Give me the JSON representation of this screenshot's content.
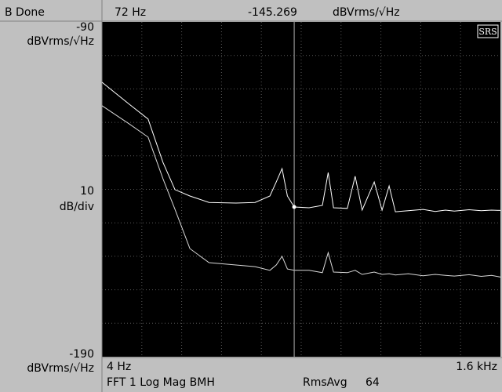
{
  "chart_data": {
    "type": "line",
    "status": "B Done",
    "logo": "SRS",
    "trace_label": "FFT 1 Log Mag BMH",
    "averaging": {
      "label": "RmsAvg",
      "count": 64
    },
    "marker": {
      "x": {
        "value": 72,
        "label": "72 Hz"
      },
      "value": -145.269
    },
    "ylabel": "dBVrms/√Hz",
    "scale_per_div": 10,
    "scale_unit": "dB/div",
    "xlog": true,
    "grid": true,
    "xlim": [
      4,
      1600
    ],
    "xticks": [
      {
        "value": 4,
        "label": "4 Hz"
      },
      {
        "value": 1600,
        "label": "1.6 kHz"
      }
    ],
    "ylim": [
      -190,
      -90
    ],
    "yticks": [
      -90,
      -190
    ],
    "x": [
      4,
      6,
      8,
      10,
      12,
      15,
      20,
      30,
      40,
      50,
      55,
      60,
      65,
      72,
      90,
      110,
      120,
      130,
      160,
      180,
      200,
      240,
      270,
      300,
      330,
      400,
      500,
      600,
      700,
      800,
      1000,
      1200,
      1400,
      1600
    ],
    "series": [
      {
        "color": "#ffffff",
        "values": [
          -108,
          -114.5,
          -119,
          -131.9,
          -140.1,
          -142,
          -143.9,
          -144.1,
          -143.9,
          -142,
          -137.8,
          -133.8,
          -142,
          -145.269,
          -145.5,
          -144.8,
          -135,
          -145.5,
          -145.7,
          -136.1,
          -146.2,
          -137.8,
          -146.2,
          -139,
          -146.7,
          -146.4,
          -146,
          -146.6,
          -146.2,
          -146.5,
          -146.1,
          -146.4,
          -146.2,
          -146.3
        ]
      },
      {
        "color": "#d8d8d8",
        "values": [
          -115,
          -120.4,
          -124.4,
          -136.8,
          -146,
          -157.7,
          -161.9,
          -162.6,
          -163.1,
          -164.2,
          -162.6,
          -160,
          -163.8,
          -164.2,
          -164.2,
          -164.9,
          -158.9,
          -164.7,
          -164.9,
          -164.2,
          -165.4,
          -164.7,
          -165.4,
          -165.2,
          -165.6,
          -165.2,
          -165.8,
          -165.4,
          -165.7,
          -165.9,
          -165.5,
          -166,
          -165.7,
          -166.2
        ]
      }
    ]
  }
}
